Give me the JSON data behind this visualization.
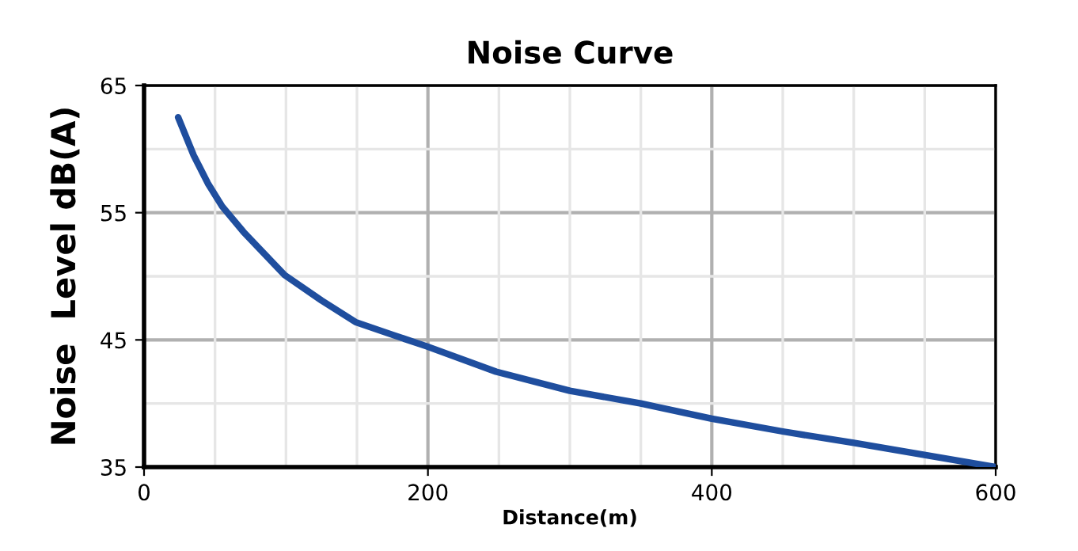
{
  "chart_data": {
    "type": "line",
    "title": "Noise Curve",
    "xlabel": "Distance(m)",
    "ylabel": "Noise  Level dB(A)",
    "x": [
      24,
      35,
      45,
      55,
      70,
      99,
      125,
      149,
      175,
      199,
      248,
      300,
      350,
      400,
      450,
      500,
      600
    ],
    "series": [
      {
        "color": "#1f4e9e",
        "values": [
          62.5,
          59.5,
          57.3,
          55.5,
          53.5,
          50.1,
          48.1,
          46.4,
          45.4,
          44.5,
          42.5,
          41.0,
          40.0,
          38.8,
          37.8,
          36.9,
          35.0
        ]
      }
    ],
    "xlim": [
      0,
      600
    ],
    "ylim": [
      35,
      65
    ],
    "xticks": [
      0,
      200,
      400,
      600
    ],
    "yticks": [
      35,
      45,
      55,
      65
    ],
    "grid": true,
    "marker": "none",
    "line_style": "solid",
    "legend": false
  }
}
